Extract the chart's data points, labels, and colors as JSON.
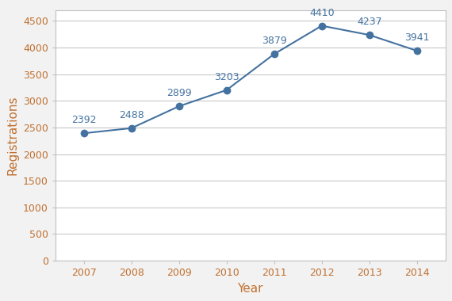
{
  "years": [
    2007,
    2008,
    2009,
    2010,
    2011,
    2012,
    2013,
    2014
  ],
  "values": [
    2392,
    2488,
    2899,
    3203,
    3879,
    4410,
    4237,
    3941
  ],
  "line_color": "#4472a0",
  "marker_color": "#4472a0",
  "xlabel": "Year",
  "ylabel": "Registrations",
  "ylim": [
    0,
    4700
  ],
  "yticks": [
    0,
    500,
    1000,
    1500,
    2000,
    2500,
    3000,
    3500,
    4000,
    4500
  ],
  "background_color": "#f2f2f2",
  "plot_bg_color": "#ffffff",
  "grid_color": "#c8c8c8",
  "spine_color": "#c0c0c0",
  "tick_label_color": "#c07030",
  "axis_label_color": "#c07030",
  "label_fontsize": 9,
  "axis_label_fontsize": 11,
  "annotation_fontsize": 9,
  "annotation_color": "#4472a0"
}
